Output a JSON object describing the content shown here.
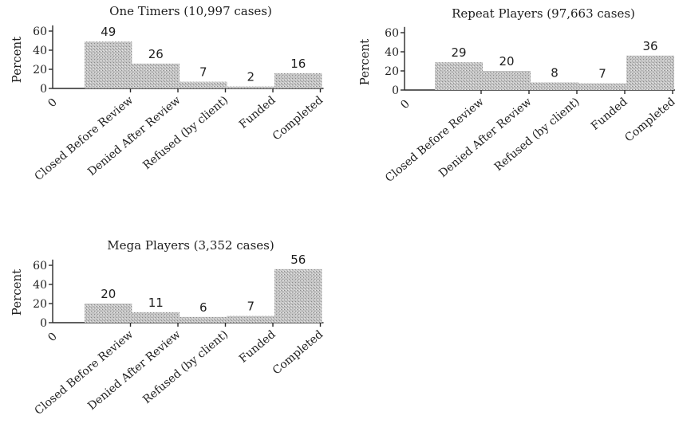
{
  "chart_data": [
    {
      "type": "bar",
      "title": "One Timers (10,997 cases)",
      "ylabel": "Percent",
      "categories": [
        "Closed Before Review",
        "Denied After Review",
        "Refused (by client)",
        "Funded",
        "Completed"
      ],
      "values": [
        49,
        26,
        7,
        2,
        16
      ],
      "data_labels": [
        "49",
        "26",
        "7",
        "2",
        "16"
      ],
      "x_origin_label": "0",
      "yticks": [
        0,
        20,
        40,
        60
      ],
      "ylim": [
        0,
        66
      ],
      "bar_fill": "#b9b9b9",
      "grid": false
    },
    {
      "type": "bar",
      "title": "Repeat Players (97,663 cases)",
      "ylabel": "Percent",
      "categories": [
        "Closed Before Review",
        "Denied After Review",
        "Refused (by client)",
        "Funded",
        "Completed"
      ],
      "values": [
        29,
        20,
        8,
        7,
        36
      ],
      "data_labels": [
        "29",
        "20",
        "8",
        "7",
        "36"
      ],
      "x_origin_label": "0",
      "yticks": [
        0,
        20,
        40,
        60
      ],
      "ylim": [
        0,
        66
      ],
      "bar_fill": "#b9b9b9",
      "grid": false
    },
    {
      "type": "bar",
      "title": "Mega Players (3,352 cases)",
      "ylabel": "Percent",
      "categories": [
        "Closed Before Review",
        "Denied After Review",
        "Refused (by client)",
        "Funded",
        "Completed"
      ],
      "values": [
        20,
        11,
        6,
        7,
        56
      ],
      "data_labels": [
        "20",
        "11",
        "6",
        "7",
        "56"
      ],
      "x_origin_label": "0",
      "yticks": [
        0,
        20,
        40,
        60
      ],
      "ylim": [
        0,
        66
      ],
      "bar_fill": "#b9b9b9",
      "grid": false
    }
  ]
}
